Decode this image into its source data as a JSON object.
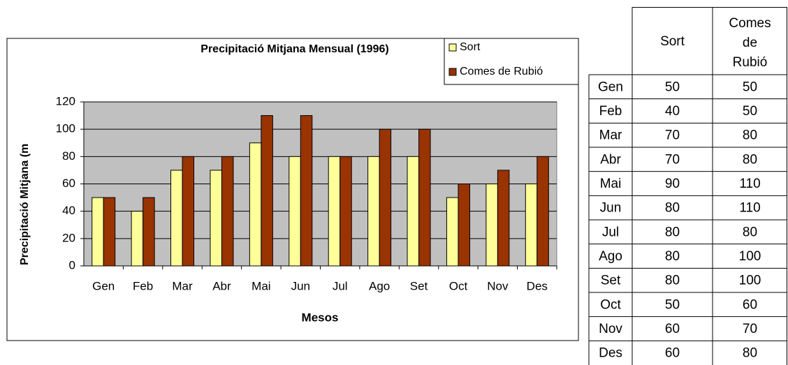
{
  "chart_data": {
    "type": "bar",
    "title": "Precipitació Mitjana Mensual (1996)",
    "x_label": "Mesos",
    "y_label": "Precipitació Mitjana (m",
    "categories": [
      "Gen",
      "Feb",
      "Mar",
      "Abr",
      "Mai",
      "Jun",
      "Jul",
      "Ago",
      "Set",
      "Oct",
      "Nov",
      "Des"
    ],
    "series": [
      {
        "name": "Sort",
        "color": "#ffff99",
        "values": [
          50,
          40,
          70,
          70,
          90,
          80,
          80,
          80,
          80,
          50,
          60,
          60
        ]
      },
      {
        "name": "Comes de Rubió",
        "color": "#993300",
        "values": [
          50,
          50,
          80,
          80,
          110,
          110,
          80,
          100,
          100,
          60,
          70,
          80
        ]
      }
    ],
    "ylim": [
      0,
      120
    ],
    "yticks": [
      0,
      20,
      40,
      60,
      80,
      100,
      120
    ],
    "grid": true,
    "plot_background": "#c0c0c0"
  },
  "table": {
    "columns": [
      "Sort",
      "Comes de Rubió"
    ],
    "rows": [
      [
        "Gen",
        50,
        50
      ],
      [
        "Feb",
        40,
        50
      ],
      [
        "Mar",
        70,
        80
      ],
      [
        "Abr",
        70,
        80
      ],
      [
        "Mai",
        90,
        110
      ],
      [
        "Jun",
        80,
        110
      ],
      [
        "Jul",
        80,
        80
      ],
      [
        "Ago",
        80,
        100
      ],
      [
        "Set",
        80,
        100
      ],
      [
        "Oct",
        50,
        60
      ],
      [
        "Nov",
        60,
        70
      ],
      [
        "Des",
        60,
        80
      ]
    ]
  }
}
